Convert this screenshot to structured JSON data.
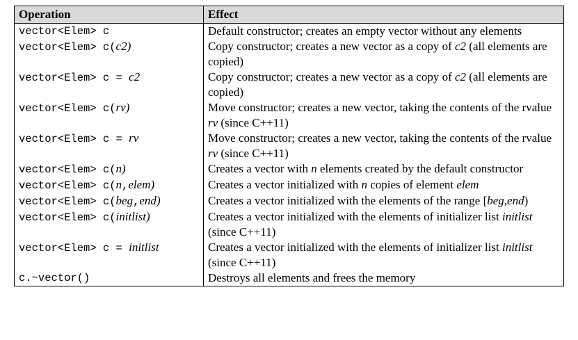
{
  "table": {
    "headers": {
      "operation": "Operation",
      "effect": "Effect"
    },
    "rows": [
      {
        "op": [
          {
            "t": "vector<Elem> c",
            "i": false
          }
        ],
        "effect": [
          {
            "t": "Default constructor; creates an empty vector without any elements",
            "i": false
          }
        ]
      },
      {
        "op": [
          {
            "t": "vector<Elem> c(",
            "i": false
          },
          {
            "t": "c2",
            "i": true
          },
          {
            "t": ")",
            "i": true
          }
        ],
        "effect": [
          {
            "t": "Copy constructor; creates a new vector as a copy of ",
            "i": false
          },
          {
            "t": "c2",
            "i": true
          },
          {
            "t": " (all elements are copied)",
            "i": false
          }
        ]
      },
      {
        "op": [
          {
            "t": "vector<Elem> c = ",
            "i": false
          },
          {
            "t": "c2",
            "i": true
          }
        ],
        "effect": [
          {
            "t": "Copy constructor; creates a new vector as a copy of ",
            "i": false
          },
          {
            "t": "c2",
            "i": true
          },
          {
            "t": " (all elements are copied)",
            "i": false
          }
        ]
      },
      {
        "op": [
          {
            "t": "vector<Elem> c(",
            "i": false
          },
          {
            "t": "rv",
            "i": true
          },
          {
            "t": ")",
            "i": true
          }
        ],
        "effect": [
          {
            "t": "Move constructor; creates a new vector, taking the contents of the rvalue ",
            "i": false
          },
          {
            "t": "rv",
            "i": true
          },
          {
            "t": " (since C++11)",
            "i": false
          }
        ]
      },
      {
        "op": [
          {
            "t": "vector<Elem> c = ",
            "i": false
          },
          {
            "t": "rv",
            "i": true
          }
        ],
        "effect": [
          {
            "t": "Move constructor; creates a new vector, taking the contents of the rvalue ",
            "i": false
          },
          {
            "t": "rv",
            "i": true
          },
          {
            "t": " (since C++11)",
            "i": false
          }
        ]
      },
      {
        "op": [
          {
            "t": "vector<Elem> c(",
            "i": false
          },
          {
            "t": "n",
            "i": true
          },
          {
            "t": ")",
            "i": true
          }
        ],
        "effect": [
          {
            "t": "Creates a vector with ",
            "i": false
          },
          {
            "t": "n",
            "i": true
          },
          {
            "t": " elements created by the default constructor",
            "i": false
          }
        ]
      },
      {
        "op": [
          {
            "t": "vector<Elem> c(",
            "i": false
          },
          {
            "t": "n",
            "i": true
          },
          {
            "t": ",",
            "i": false
          },
          {
            "t": "elem",
            "i": true
          },
          {
            "t": ")",
            "i": true
          }
        ],
        "effect": [
          {
            "t": "Creates a vector initialized with ",
            "i": false
          },
          {
            "t": "n",
            "i": true
          },
          {
            "t": " copies of element ",
            "i": false
          },
          {
            "t": "elem",
            "i": true
          }
        ]
      },
      {
        "op": [
          {
            "t": "vector<Elem> c(",
            "i": false
          },
          {
            "t": "beg",
            "i": true
          },
          {
            "t": ",",
            "i": false
          },
          {
            "t": "end",
            "i": true
          },
          {
            "t": ")",
            "i": true
          }
        ],
        "effect": [
          {
            "t": "Creates a vector initialized with the elements of the range [",
            "i": false
          },
          {
            "t": "beg",
            "i": true
          },
          {
            "t": ",",
            "i": false
          },
          {
            "t": "end",
            "i": true
          },
          {
            "t": ")",
            "i": false
          }
        ]
      },
      {
        "op": [
          {
            "t": "vector<Elem> c(",
            "i": false
          },
          {
            "t": "initlist",
            "i": true
          },
          {
            "t": ")",
            "i": true
          }
        ],
        "effect": [
          {
            "t": "Creates a vector initialized with the elements of initializer list ",
            "i": false
          },
          {
            "t": "initlist",
            "i": true
          },
          {
            "t": " (since C++11)",
            "i": false
          }
        ]
      },
      {
        "op": [
          {
            "t": "vector<Elem> c = ",
            "i": false
          },
          {
            "t": "initlist",
            "i": true
          }
        ],
        "effect": [
          {
            "t": "Creates a vector initialized with the elements of initializer list ",
            "i": false
          },
          {
            "t": "initlist",
            "i": true
          },
          {
            "t": " (since C++11)",
            "i": false
          }
        ]
      },
      {
        "op": [
          {
            "t": "c.~vector()",
            "i": false
          }
        ],
        "effect": [
          {
            "t": "Destroys all elements and frees the memory",
            "i": false
          }
        ]
      }
    ]
  }
}
